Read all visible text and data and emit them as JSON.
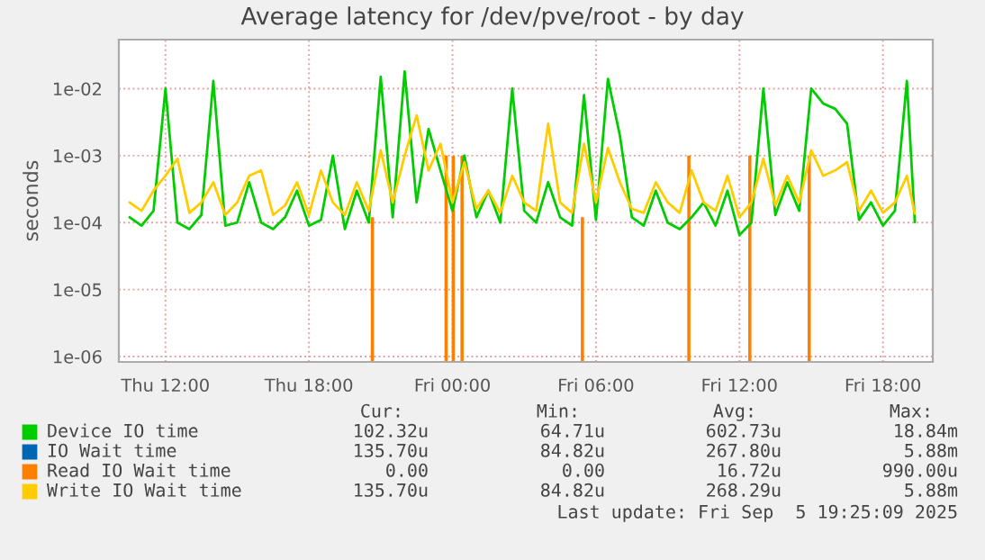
{
  "chart_data": {
    "type": "line",
    "title": "Average latency for /dev/pve/root - by day",
    "ylabel": "seconds",
    "x": [
      "2025-09-04T10:30",
      "2025-09-04T11:00",
      "2025-09-04T11:30",
      "2025-09-04T12:00",
      "2025-09-04T12:30",
      "2025-09-04T13:00",
      "2025-09-04T13:30",
      "2025-09-04T14:00",
      "2025-09-04T14:30",
      "2025-09-04T15:00",
      "2025-09-04T15:30",
      "2025-09-04T16:00",
      "2025-09-04T16:30",
      "2025-09-04T17:00",
      "2025-09-04T17:30",
      "2025-09-04T18:00",
      "2025-09-04T18:30",
      "2025-09-04T19:00",
      "2025-09-04T19:30",
      "2025-09-04T20:00",
      "2025-09-04T20:30",
      "2025-09-04T21:00",
      "2025-09-04T21:30",
      "2025-09-04T22:00",
      "2025-09-04T22:30",
      "2025-09-04T23:00",
      "2025-09-04T23:30",
      "2025-09-05T00:00",
      "2025-09-05T00:30",
      "2025-09-05T01:00",
      "2025-09-05T01:30",
      "2025-09-05T02:00",
      "2025-09-05T02:30",
      "2025-09-05T03:00",
      "2025-09-05T03:30",
      "2025-09-05T04:00",
      "2025-09-05T04:30",
      "2025-09-05T05:00",
      "2025-09-05T05:30",
      "2025-09-05T06:00",
      "2025-09-05T06:30",
      "2025-09-05T07:00",
      "2025-09-05T07:30",
      "2025-09-05T08:00",
      "2025-09-05T08:30",
      "2025-09-05T09:00",
      "2025-09-05T09:30",
      "2025-09-05T10:00",
      "2025-09-05T10:30",
      "2025-09-05T11:00",
      "2025-09-05T11:30",
      "2025-09-05T12:00",
      "2025-09-05T12:30",
      "2025-09-05T13:00",
      "2025-09-05T13:30",
      "2025-09-05T14:00",
      "2025-09-05T14:30",
      "2025-09-05T15:00",
      "2025-09-05T15:30",
      "2025-09-05T16:00",
      "2025-09-05T16:30",
      "2025-09-05T17:00",
      "2025-09-05T17:30",
      "2025-09-05T18:00",
      "2025-09-05T18:30",
      "2025-09-05T19:00",
      "2025-09-05T19:20"
    ],
    "series": [
      {
        "name": "Device IO time",
        "color": "#00cc00",
        "values": [
          0.00012,
          9e-05,
          0.00015,
          0.01,
          0.0001,
          8e-05,
          0.00013,
          0.013,
          9e-05,
          0.0001,
          0.0004,
          0.0001,
          8e-05,
          0.00012,
          0.0003,
          9e-05,
          0.00011,
          0.001,
          8e-05,
          0.0003,
          0.0001,
          0.015,
          0.00012,
          0.018,
          0.0002,
          0.0025,
          0.0006,
          0.00015,
          0.001,
          0.00012,
          0.0003,
          0.0001,
          0.01,
          0.00015,
          0.0001,
          0.0004,
          0.00012,
          9e-05,
          0.008,
          0.00011,
          0.014,
          0.002,
          0.00012,
          9e-05,
          0.0003,
          0.0001,
          8e-05,
          0.00012,
          0.0002,
          9e-05,
          0.0003,
          6.5e-05,
          0.0001,
          0.01,
          0.00013,
          0.0004,
          0.00015,
          0.01,
          0.006,
          0.005,
          0.003,
          0.00011,
          0.0002,
          9e-05,
          0.00015,
          0.013,
          0.000102
        ]
      },
      {
        "name": "IO Wait time",
        "color": "#0066b3",
        "values": [
          null,
          null,
          null,
          null,
          null,
          null,
          null,
          null,
          null,
          null,
          null,
          null,
          null,
          null,
          null,
          null,
          null,
          null,
          null,
          null,
          null,
          null,
          null,
          null,
          null,
          null,
          null,
          null,
          null,
          null,
          null,
          null,
          null,
          null,
          null,
          null,
          null,
          null,
          null,
          null,
          null,
          null,
          null,
          null,
          null,
          null,
          null,
          null,
          null,
          null,
          null,
          null,
          null,
          null,
          null,
          null,
          null,
          null,
          null,
          null,
          null,
          null,
          null,
          null,
          null,
          null,
          null
        ]
      },
      {
        "name": "Read IO Wait time",
        "color": "#ff8000",
        "type": "bar",
        "x": [
          "2025-09-04T20:39",
          "2025-09-04T23:44",
          "2025-09-05T00:02",
          "2025-09-05T00:24",
          "2025-09-05T05:26",
          "2025-09-05T09:53",
          "2025-09-05T12:26",
          "2025-09-05T14:55"
        ],
        "values": [
          0.00012,
          0.001,
          0.00099,
          0.001,
          0.00012,
          0.001,
          0.001,
          0.001
        ]
      },
      {
        "name": "Write IO Wait time",
        "color": "#ffcc00",
        "values": [
          0.0002,
          0.00015,
          0.0003,
          0.0005,
          0.0009,
          0.00014,
          0.0002,
          0.0004,
          0.00013,
          0.0002,
          0.0005,
          0.0006,
          0.00013,
          0.00018,
          0.0004,
          0.00013,
          0.0006,
          0.0002,
          0.00013,
          0.0004,
          0.00015,
          0.0012,
          0.0002,
          0.001,
          0.004,
          0.0006,
          0.0015,
          0.0002,
          0.0008,
          0.00016,
          0.0003,
          0.00014,
          0.0005,
          0.0002,
          0.00015,
          0.003,
          0.0002,
          0.00014,
          0.0015,
          0.0002,
          0.0013,
          0.0004,
          0.00016,
          0.00014,
          0.0004,
          0.0002,
          0.00014,
          0.0006,
          0.0002,
          0.00015,
          0.0005,
          0.00012,
          0.0002,
          0.0009,
          0.00018,
          0.0005,
          0.0002,
          0.0012,
          0.0005,
          0.0006,
          0.0008,
          0.00015,
          0.0003,
          0.00014,
          0.0002,
          0.0005,
          0.0001357
        ]
      }
    ],
    "log": "y",
    "ylim": [
      8.3e-07,
      0.054
    ],
    "yticks": [
      {
        "value": 1e-06,
        "label": "1e-06"
      },
      {
        "value": 1e-05,
        "label": "1e-05"
      },
      {
        "value": 0.0001,
        "label": "1e-04"
      },
      {
        "value": 0.001,
        "label": "1e-03"
      },
      {
        "value": 0.01,
        "label": "1e-02"
      }
    ],
    "xlim": [
      "2025-09-04T10:03",
      "2025-09-05T20:05"
    ],
    "xticks": [
      {
        "value": "2025-09-04T12:00",
        "label": "Thu 12:00"
      },
      {
        "value": "2025-09-04T18:00",
        "label": "Thu 18:00"
      },
      {
        "value": "2025-09-05T00:00",
        "label": "Fri 00:00"
      },
      {
        "value": "2025-09-05T06:00",
        "label": "Fri 06:00"
      },
      {
        "value": "2025-09-05T12:00",
        "label": "Fri 12:00"
      },
      {
        "value": "2025-09-05T18:00",
        "label": "Fri 18:00"
      }
    ],
    "grid": true,
    "legend": "bottom",
    "line_style": "solid",
    "marker": "none",
    "annotations": [
      "Cur:",
      "Min:",
      "Avg:",
      "Max:",
      "102.32u",
      "64.71u",
      "602.73u",
      "18.84m",
      "135.70u",
      "84.82u",
      "267.80u",
      "5.88m",
      "0.00",
      "0.00",
      "16.72u",
      "990.00u",
      "135.70u",
      "84.82u",
      "268.29u",
      "5.88m",
      "Last update: Fri Sep  5 19:25:09 2025"
    ]
  }
}
